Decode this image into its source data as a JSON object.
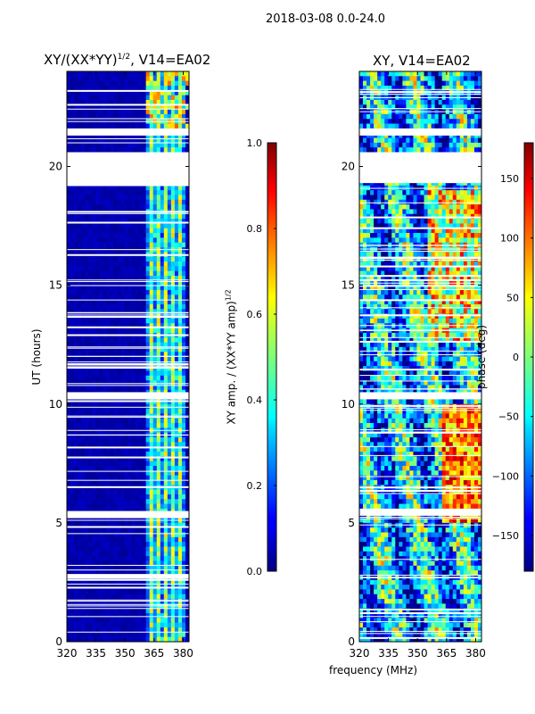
{
  "suptitle": "2018-03-08 0.0-24.0",
  "chart_data": [
    {
      "type": "heatmap",
      "title_prefix": "XY/(XX*YY)",
      "title_exponent": "1/2",
      "title_suffix": ", V14=EA02",
      "ylabel": "UT (hours)",
      "xlabel": "",
      "xlim": [
        320,
        383
      ],
      "ylim": [
        0,
        24
      ],
      "xticks": [
        "320",
        "335",
        "350",
        "365",
        "380"
      ],
      "yticks": [
        "0",
        "5",
        "10",
        "15",
        "20"
      ],
      "xtick_values": [
        320,
        335,
        350,
        365,
        380
      ],
      "ytick_values": [
        0,
        5,
        10,
        15,
        20
      ],
      "colormap": "jet",
      "colorbar": {
        "label_prefix": "XY amp. / (XX*YY amp)",
        "label_exponent": "1/2",
        "range": [
          0.0,
          1.0
        ],
        "ticks": [
          "0.0",
          "0.2",
          "0.4",
          "0.6",
          "0.8",
          "1.0"
        ],
        "tick_values": [
          0.0,
          0.2,
          0.4,
          0.6,
          0.8,
          1.0
        ]
      },
      "data_gaps_hours": [
        [
          19.3,
          20.6
        ],
        [
          10.2,
          10.5
        ],
        [
          2.65,
          2.85
        ],
        [
          5.2,
          5.5
        ],
        [
          21.3,
          21.6
        ]
      ],
      "band_note": "low amplitude below ~362 MHz; elevated amplitude in channels near 363, 367, 372, 375, 378 MHz"
    },
    {
      "type": "heatmap",
      "title": "XY, V14=EA02",
      "ylabel": "",
      "xlim": [
        320,
        383
      ],
      "ylim": [
        0,
        24
      ],
      "xticks": [
        "320",
        "335",
        "350",
        "365",
        "380"
      ],
      "yticks": [
        "0",
        "5",
        "10",
        "15",
        "20"
      ],
      "xtick_values": [
        320,
        335,
        350,
        365,
        380
      ],
      "ytick_values": [
        0,
        5,
        10,
        15,
        20
      ],
      "colormap": "jet",
      "colorbar": {
        "label": "phase (deg)",
        "range": [
          -180,
          180
        ],
        "ticks": [
          "−150",
          "−100",
          "−50",
          "0",
          "50",
          "100",
          "150"
        ],
        "tick_values": [
          -150,
          -100,
          -50,
          0,
          50,
          100,
          150
        ]
      },
      "data_gaps_hours": [
        [
          19.3,
          20.6
        ],
        [
          10.2,
          10.5
        ],
        [
          5.3,
          5.6
        ],
        [
          21.3,
          21.6
        ]
      ]
    }
  ],
  "shared_xlabel": "frequency (MHz)"
}
